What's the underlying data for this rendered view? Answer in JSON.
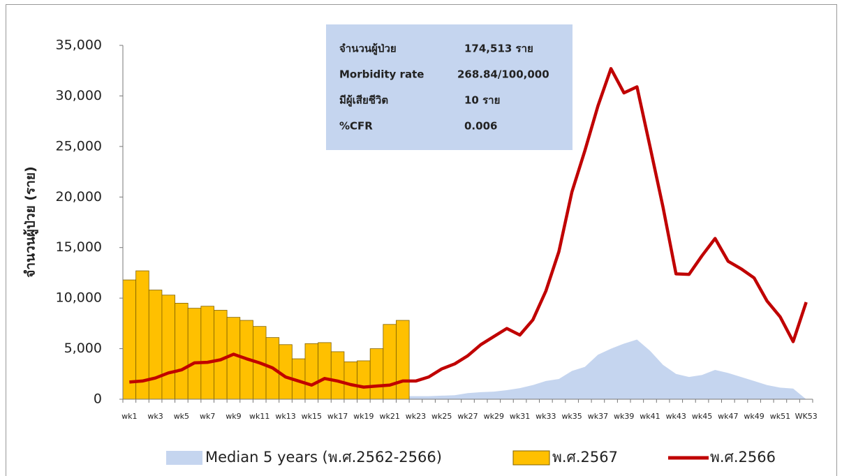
{
  "chart_data": {
    "type": "combo",
    "y_label": "จำนวนผู้ป่วย (ราย)",
    "categories": [
      "wk1",
      null,
      "wk3",
      null,
      "wk5",
      null,
      "wk7",
      null,
      "wk9",
      null,
      "wk11",
      null,
      "wk13",
      null,
      "wk15",
      null,
      "wk17",
      null,
      "wk19",
      null,
      "wk21",
      null,
      "wk23",
      null,
      "wk25",
      null,
      "wk27",
      null,
      "wk29",
      null,
      "wk31",
      null,
      "wk33",
      null,
      "wk35",
      null,
      "wk37",
      null,
      "wk39",
      null,
      "wk41",
      null,
      "wk43",
      null,
      "wk45",
      null,
      "wk47",
      null,
      "wk49",
      null,
      "wk51",
      null,
      "WK53"
    ],
    "ylim": [
      0,
      35000
    ],
    "yticks": [
      {
        "value": 0,
        "label": "0"
      },
      {
        "value": 5000,
        "label": "5,000"
      },
      {
        "value": 10000,
        "label": "10,000"
      },
      {
        "value": 15000,
        "label": "15,000"
      },
      {
        "value": 20000,
        "label": "20,000"
      },
      {
        "value": 25000,
        "label": "25,000"
      },
      {
        "value": 30000,
        "label": "30,000"
      },
      {
        "value": 35000,
        "label": "35,000"
      }
    ],
    "series": [
      {
        "name": "Median 5 years (พ.ศ.2562-2566)",
        "type": "area",
        "color": "#c5d5ef",
        "values": [
          null,
          null,
          null,
          null,
          null,
          null,
          null,
          null,
          null,
          null,
          null,
          null,
          null,
          null,
          null,
          null,
          null,
          null,
          null,
          null,
          null,
          300,
          300,
          300,
          350,
          400,
          600,
          700,
          750,
          900,
          1100,
          1400,
          1800,
          2000,
          2800,
          3200,
          4400,
          5000,
          5500,
          5900,
          4800,
          3400,
          2500,
          2200,
          2400,
          2900,
          2600,
          2200,
          1800,
          1400,
          1150,
          1050,
          0
        ]
      },
      {
        "name": "พ.ศ.2567",
        "type": "bar",
        "color": "#ffc000",
        "values": [
          11800,
          12700,
          10800,
          10300,
          9500,
          9000,
          9200,
          8800,
          8100,
          7800,
          7200,
          6100,
          5400,
          4000,
          5500,
          5600,
          4700,
          3700,
          3800,
          5000,
          7400,
          7800,
          null,
          null,
          null,
          null,
          null,
          null,
          null,
          null,
          null,
          null,
          null,
          null,
          null,
          null,
          null,
          null,
          null,
          null,
          null,
          null,
          null,
          null,
          null,
          null,
          null,
          null,
          null,
          null,
          null,
          null,
          null
        ]
      },
      {
        "name": "พ.ศ.2566",
        "type": "line",
        "color": "#c00000",
        "values": [
          1700,
          1800,
          2100,
          2600,
          2900,
          3600,
          3650,
          3900,
          4450,
          4000,
          3600,
          3100,
          2200,
          1800,
          1400,
          2050,
          1800,
          1450,
          1200,
          1300,
          1400,
          1800,
          1800,
          2200,
          3000,
          3500,
          4300,
          5400,
          6200,
          7000,
          6350,
          7850,
          10700,
          14600,
          20500,
          24600,
          29000,
          32700,
          30300,
          30900,
          25000,
          19000,
          12400,
          12350,
          14200,
          15900,
          13650,
          12900,
          12000,
          9700,
          8150,
          5700,
          9600
        ]
      }
    ],
    "info_box": [
      [
        "จำนวนผู้ป่วย",
        "174,513 ราย"
      ],
      [
        "Morbidity rate",
        "268.84/100,000"
      ],
      [
        "มีผู้เสียชีวิต",
        "10 ราย"
      ],
      [
        "%CFR",
        "0.006"
      ]
    ]
  }
}
